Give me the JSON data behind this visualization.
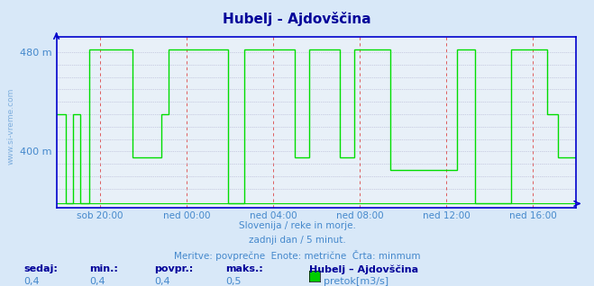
{
  "title": "Hubelj - Ajdovščina",
  "bg_color": "#d8e8f8",
  "plot_bg_color": "#e8f0f8",
  "line_color": "#00dd00",
  "axis_color": "#0000cc",
  "text_color": "#4488cc",
  "grid_color_major": "#dd4444",
  "grid_color_minor": "#aaaacc",
  "ylim_min": 355,
  "ylim_max": 492,
  "xlim_min": 0,
  "xlim_max": 288,
  "xtick_positions": [
    24,
    72,
    120,
    168,
    216,
    264
  ],
  "xtick_labels": [
    "sob 20:00",
    "ned 00:00",
    "ned 04:00",
    "ned 08:00",
    "ned 12:00",
    "ned 16:00"
  ],
  "ytick_vals": [
    400,
    480
  ],
  "ytick_labels": [
    "400 m",
    "480 m"
  ],
  "subtitle1": "Slovenija / reke in morje.",
  "subtitle2": "zadnji dan / 5 minut.",
  "subtitle3": "Meritve: povprečne  Enote: metrične  Črta: minmum",
  "footer_labels": [
    "sedaj:",
    "min.:",
    "povpr.:",
    "maks.:"
  ],
  "footer_values": [
    "0,4",
    "0,4",
    "0,4",
    "0,5"
  ],
  "legend_label": "Hubelj – Ajdovščina",
  "legend_series": "pretok[m3/s]",
  "legend_color": "#00cc00",
  "watermark": "www.si-vreme.com",
  "high": 482,
  "low": 395,
  "mid": 430,
  "zero": 358,
  "data_segments": [
    {
      "start": 0,
      "end": 5,
      "val": 430
    },
    {
      "start": 5,
      "end": 9,
      "val": 358
    },
    {
      "start": 9,
      "end": 13,
      "val": 430
    },
    {
      "start": 13,
      "end": 18,
      "val": 358
    },
    {
      "start": 18,
      "end": 42,
      "val": 482
    },
    {
      "start": 42,
      "end": 58,
      "val": 395
    },
    {
      "start": 58,
      "end": 62,
      "val": 430
    },
    {
      "start": 62,
      "end": 95,
      "val": 482
    },
    {
      "start": 95,
      "end": 104,
      "val": 358
    },
    {
      "start": 104,
      "end": 132,
      "val": 482
    },
    {
      "start": 132,
      "end": 140,
      "val": 395
    },
    {
      "start": 140,
      "end": 157,
      "val": 482
    },
    {
      "start": 157,
      "end": 165,
      "val": 395
    },
    {
      "start": 165,
      "end": 185,
      "val": 482
    },
    {
      "start": 185,
      "end": 222,
      "val": 385
    },
    {
      "start": 222,
      "end": 232,
      "val": 482
    },
    {
      "start": 232,
      "end": 252,
      "val": 358
    },
    {
      "start": 252,
      "end": 272,
      "val": 482
    },
    {
      "start": 272,
      "end": 278,
      "val": 430
    },
    {
      "start": 278,
      "end": 288,
      "val": 395
    }
  ]
}
